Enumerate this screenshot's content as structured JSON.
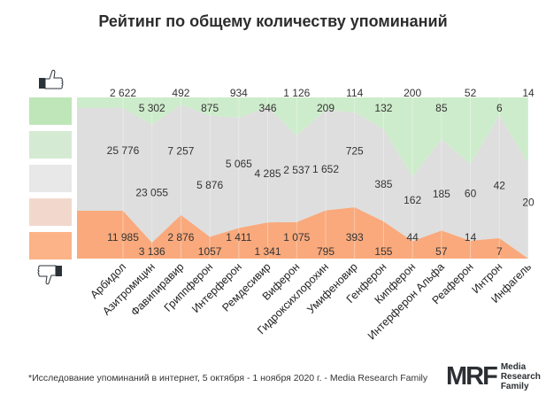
{
  "title": "Рейтинг по общему количеству упоминаний",
  "footnote": "*Исследование упоминаний в интернет, 5 октября - 1 ноября 2020 г. - Media Research Family",
  "logo": {
    "mark": "MRF",
    "text": "Media Research Family"
  },
  "chart_data": {
    "type": "area",
    "stacked": "percent",
    "title": "Рейтинг по общему количеству упоминаний",
    "categories": [
      "Арбидол",
      "Азитромицин",
      "Фавипиравир",
      "Гриппферон",
      "Интерферон",
      "Ремдесивир",
      "Виферон",
      "Гидроксихлорохин",
      "Умифеновир",
      "Генферон",
      "Кипферон",
      "Интерферон Альфа",
      "Реаферон",
      "Интрон",
      "Инфагель"
    ],
    "series": [
      {
        "name": "negative",
        "color": "#f9a97c",
        "values": [
          11985,
          3136,
          2876,
          1057,
          1411,
          1341,
          1075,
          795,
          393,
          155,
          44,
          57,
          14,
          7,
          0
        ]
      },
      {
        "name": "neutral",
        "color": "#dedede",
        "values": [
          25776,
          23055,
          7257,
          5876,
          5065,
          4285,
          2537,
          1652,
          725,
          385,
          162,
          185,
          60,
          42,
          20
        ]
      },
      {
        "name": "positive",
        "color": "#cdeccb",
        "values": [
          2622,
          5302,
          492,
          875,
          934,
          346,
          1126,
          209,
          114,
          132,
          200,
          85,
          52,
          6,
          14
        ]
      }
    ],
    "label_text": {
      "negative": [
        "11 985",
        "3 136",
        "2 876",
        "1057",
        "1 411",
        "1 341",
        "1 075",
        "795",
        "393",
        "155",
        "44",
        "57",
        "14",
        "7",
        ""
      ],
      "neutral": [
        "25 776",
        "23 055",
        "7 257",
        "5 876",
        "5 065",
        "4 285",
        "2 537",
        "1 652",
        "725",
        "385",
        "162",
        "185",
        "60",
        "42",
        "20"
      ],
      "positive": [
        "2 622",
        "5 302",
        "492",
        "875",
        "934",
        "346",
        "1 126",
        "209",
        "114",
        "132",
        "200",
        "85",
        "52",
        "6",
        "14"
      ]
    },
    "legend": [
      "#bfe6b9",
      "#d5ead3",
      "#e8e8e8",
      "#f2d8cc",
      "#fbb387"
    ],
    "legend_placement": "left",
    "ylim": [
      0,
      100
    ]
  }
}
